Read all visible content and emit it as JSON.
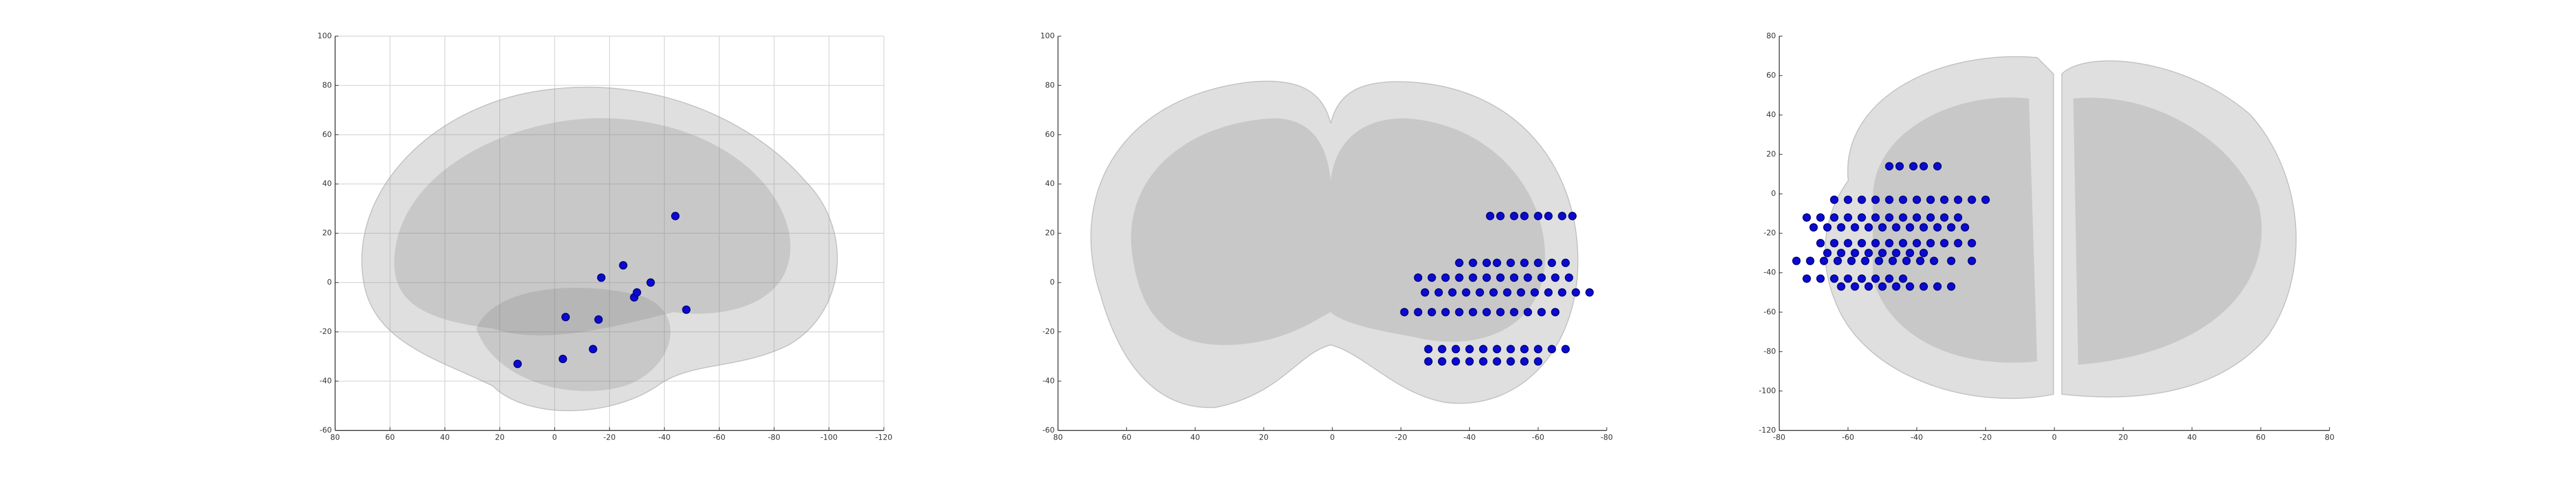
{
  "chart_data": [
    {
      "type": "scatter",
      "color": "#0a0ad0",
      "grid": true,
      "xlim": [
        80,
        -120
      ],
      "ylim": [
        -60,
        100
      ],
      "xticks": [
        80,
        60,
        40,
        20,
        0,
        -20,
        -40,
        -60,
        -80,
        -100,
        -120
      ],
      "yticks": [
        -60,
        -40,
        -20,
        0,
        20,
        40,
        60,
        80,
        100
      ],
      "x": [
        -44,
        -25,
        -17,
        -4,
        -16,
        -29,
        -35,
        -48,
        -14,
        -3,
        13.5,
        -30
      ],
      "y": [
        27,
        7,
        2,
        -14,
        -15,
        -6,
        0,
        -11,
        -27,
        -31,
        -33,
        -4
      ]
    },
    {
      "type": "scatter",
      "color": "#0a0ad0",
      "grid": false,
      "xlim": [
        80,
        -80
      ],
      "ylim": [
        -60,
        100
      ],
      "xticks": [
        80,
        60,
        40,
        20,
        0,
        -20,
        -40,
        -60,
        -80
      ],
      "yticks": [
        -60,
        -40,
        -20,
        0,
        20,
        40,
        60,
        80,
        100
      ],
      "x": [
        -46,
        -49,
        -53,
        -56,
        -60,
        -63,
        -67,
        -70,
        -37,
        -41,
        -45,
        -48,
        -52,
        -56,
        -60,
        -64,
        -68,
        -25,
        -29,
        -33,
        -37,
        -41,
        -45,
        -49,
        -53,
        -57,
        -61,
        -65,
        -69,
        -27,
        -31,
        -35,
        -39,
        -43,
        -47,
        -51,
        -55,
        -59,
        -63,
        -67,
        -71,
        -75,
        -21,
        -25,
        -29,
        -33,
        -37,
        -41,
        -45,
        -49,
        -53,
        -57,
        -61,
        -65,
        -28,
        -32,
        -36,
        -40,
        -44,
        -48,
        -52,
        -56,
        -60,
        -64,
        -68,
        -28,
        -32,
        -36,
        -40,
        -44,
        -48,
        -52,
        -56,
        -60
      ],
      "y": [
        27,
        27,
        27,
        27,
        27,
        27,
        27,
        27,
        8,
        8,
        8,
        8,
        8,
        8,
        8,
        8,
        8,
        2,
        2,
        2,
        2,
        2,
        2,
        2,
        2,
        2,
        2,
        2,
        2,
        -4,
        -4,
        -4,
        -4,
        -4,
        -4,
        -4,
        -4,
        -4,
        -4,
        -4,
        -4,
        -4,
        -12,
        -12,
        -12,
        -12,
        -12,
        -12,
        -12,
        -12,
        -12,
        -12,
        -12,
        -12,
        -27,
        -27,
        -27,
        -27,
        -27,
        -27,
        -27,
        -27,
        -27,
        -27,
        -27,
        -32,
        -32,
        -32,
        -32,
        -32,
        -32,
        -32,
        -32,
        -32
      ]
    },
    {
      "type": "scatter",
      "color": "#0a0ad0",
      "grid": false,
      "xlim": [
        -80,
        80
      ],
      "ylim": [
        -120,
        80
      ],
      "xticks": [
        -80,
        -60,
        -40,
        -20,
        0,
        20,
        40,
        60,
        80
      ],
      "yticks": [
        -120,
        -100,
        -80,
        -60,
        -40,
        -20,
        0,
        20,
        40,
        60,
        80
      ],
      "x": [
        -48,
        -45,
        -41,
        -38,
        -34,
        -64,
        -60,
        -56,
        -52,
        -48,
        -44,
        -40,
        -36,
        -32,
        -28,
        -24,
        -20,
        -72,
        -68,
        -64,
        -60,
        -56,
        -52,
        -48,
        -44,
        -40,
        -36,
        -32,
        -28,
        -70,
        -66,
        -62,
        -58,
        -54,
        -50,
        -46,
        -42,
        -38,
        -34,
        -30,
        -26,
        -68,
        -64,
        -60,
        -56,
        -52,
        -48,
        -44,
        -40,
        -36,
        -32,
        -28,
        -24,
        -66,
        -62,
        -58,
        -54,
        -50,
        -46,
        -42,
        -38,
        -75,
        -71,
        -67,
        -63,
        -59,
        -55,
        -51,
        -47,
        -43,
        -39,
        -35,
        -30,
        -24,
        -72,
        -68,
        -64,
        -60,
        -56,
        -52,
        -48,
        -44,
        -62,
        -58,
        -54,
        -50,
        -46,
        -42,
        -38,
        -34,
        -30
      ],
      "y": [
        14,
        14,
        14,
        14,
        14,
        -3,
        -3,
        -3,
        -3,
        -3,
        -3,
        -3,
        -3,
        -3,
        -3,
        -3,
        -3,
        -12,
        -12,
        -12,
        -12,
        -12,
        -12,
        -12,
        -12,
        -12,
        -12,
        -12,
        -12,
        -17,
        -17,
        -17,
        -17,
        -17,
        -17,
        -17,
        -17,
        -17,
        -17,
        -17,
        -17,
        -25,
        -25,
        -25,
        -25,
        -25,
        -25,
        -25,
        -25,
        -25,
        -25,
        -25,
        -25,
        -30,
        -30,
        -30,
        -30,
        -30,
        -30,
        -30,
        -30,
        -34,
        -34,
        -34,
        -34,
        -34,
        -34,
        -34,
        -34,
        -34,
        -34,
        -34,
        -34,
        -34,
        -43,
        -43,
        -43,
        -43,
        -43,
        -43,
        -43,
        -43,
        -47,
        -47,
        -47,
        -47,
        -47,
        -47,
        -47,
        -47,
        -47
      ]
    }
  ]
}
